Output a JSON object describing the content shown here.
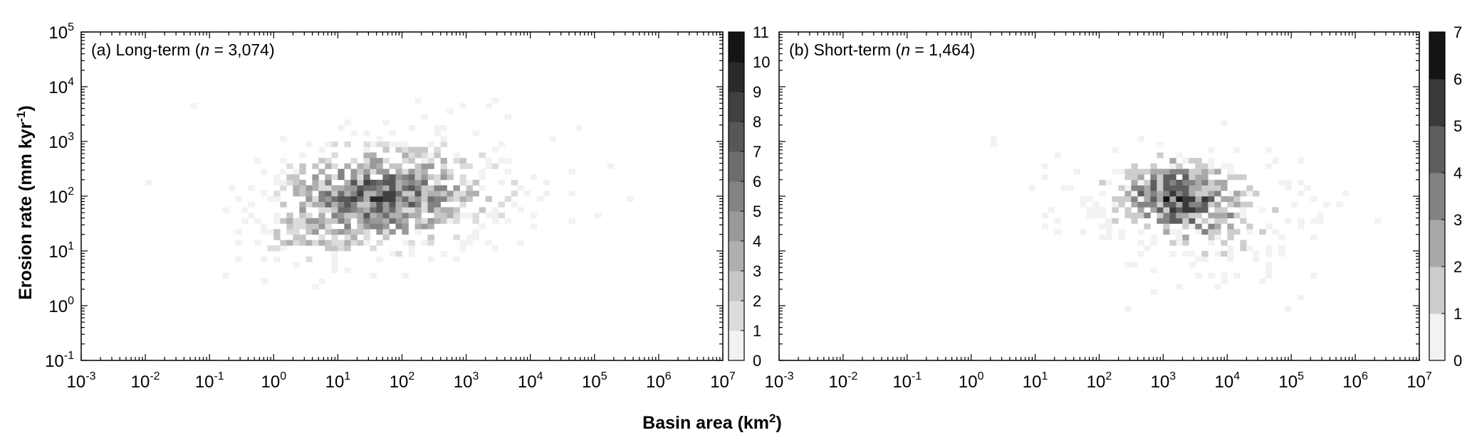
{
  "figure": {
    "ylabel_main": "Erosion rate (mm kyr",
    "ylabel_sup": "-1",
    "ylabel_close": ")",
    "xlabel_main": "Basin area (km",
    "xlabel_sup": "2",
    "xlabel_close": ")"
  },
  "chart_data": [
    {
      "type": "heatmap",
      "panel_label_pre": "(a) Long-term (",
      "panel_label_n": "n",
      "panel_label_post": " = 3,074)",
      "x_scale": "log",
      "y_scale": "log",
      "xlim": [
        0.001,
        10000000
      ],
      "ylim": [
        0.1,
        100000
      ],
      "x_ticks": [
        {
          "base": "10",
          "exp": "-3"
        },
        {
          "base": "10",
          "exp": "-2"
        },
        {
          "base": "10",
          "exp": "-1"
        },
        {
          "base": "10",
          "exp": "0"
        },
        {
          "base": "10",
          "exp": "1"
        },
        {
          "base": "10",
          "exp": "2"
        },
        {
          "base": "10",
          "exp": "3"
        },
        {
          "base": "10",
          "exp": "4"
        },
        {
          "base": "10",
          "exp": "5"
        },
        {
          "base": "10",
          "exp": "6"
        },
        {
          "base": "10",
          "exp": "7"
        }
      ],
      "y_ticks": [
        {
          "base": "10",
          "exp": "-1"
        },
        {
          "base": "10",
          "exp": "0"
        },
        {
          "base": "10",
          "exp": "1"
        },
        {
          "base": "10",
          "exp": "2"
        },
        {
          "base": "10",
          "exp": "3"
        },
        {
          "base": "10",
          "exp": "4"
        },
        {
          "base": "10",
          "exp": "5"
        }
      ],
      "colorbar": {
        "min": 0,
        "max": 11,
        "ticks": [
          "0",
          "1",
          "2",
          "3",
          "4",
          "5",
          "6",
          "7",
          "8",
          "9",
          "10",
          "11"
        ],
        "color_low": "#f2f2f2",
        "color_high": "#141414"
      },
      "density_clusters": [
        {
          "log_x": 1.4,
          "log_y": 1.9,
          "sx": 0.9,
          "sy": 0.55,
          "weight": 0.5
        },
        {
          "log_x": 2.3,
          "log_y": 2.1,
          "sx": 1.1,
          "sy": 0.6,
          "weight": 0.3
        },
        {
          "log_x": 0.4,
          "log_y": 1.1,
          "sx": 0.6,
          "sy": 0.4,
          "weight": 0.2
        }
      ],
      "x_range_log": [
        -2.8,
        5.5
      ],
      "y_range_log": [
        -0.6,
        3.9
      ]
    },
    {
      "type": "heatmap",
      "panel_label_pre": "(b) Short-term (",
      "panel_label_n": "n",
      "panel_label_post": " = 1,464)",
      "x_scale": "log",
      "y_scale": "log",
      "xlim": [
        0.001,
        10000000
      ],
      "ylim": [
        0.1,
        100000
      ],
      "x_ticks": [
        {
          "base": "10",
          "exp": "-3"
        },
        {
          "base": "10",
          "exp": "-2"
        },
        {
          "base": "10",
          "exp": "-1"
        },
        {
          "base": "10",
          "exp": "0"
        },
        {
          "base": "10",
          "exp": "1"
        },
        {
          "base": "10",
          "exp": "2"
        },
        {
          "base": "10",
          "exp": "3"
        },
        {
          "base": "10",
          "exp": "4"
        },
        {
          "base": "10",
          "exp": "5"
        },
        {
          "base": "10",
          "exp": "6"
        },
        {
          "base": "10",
          "exp": "7"
        }
      ],
      "y_ticks": [],
      "colorbar": {
        "min": 0,
        "max": 7,
        "ticks": [
          "0",
          "1",
          "2",
          "3",
          "4",
          "5",
          "6",
          "7"
        ],
        "color_low": "#f2f2f2",
        "color_high": "#141414"
      },
      "density_clusters": [
        {
          "log_x": 3.1,
          "log_y": 2.0,
          "sx": 0.55,
          "sy": 0.45,
          "weight": 0.55
        },
        {
          "log_x": 3.8,
          "log_y": 1.6,
          "sx": 0.9,
          "sy": 0.6,
          "weight": 0.35
        },
        {
          "log_x": 1.8,
          "log_y": 1.9,
          "sx": 0.8,
          "sy": 0.5,
          "weight": 0.1
        }
      ],
      "x_range_log": [
        -2.8,
        6.8
      ],
      "y_range_log": [
        -0.8,
        3.7
      ]
    }
  ]
}
